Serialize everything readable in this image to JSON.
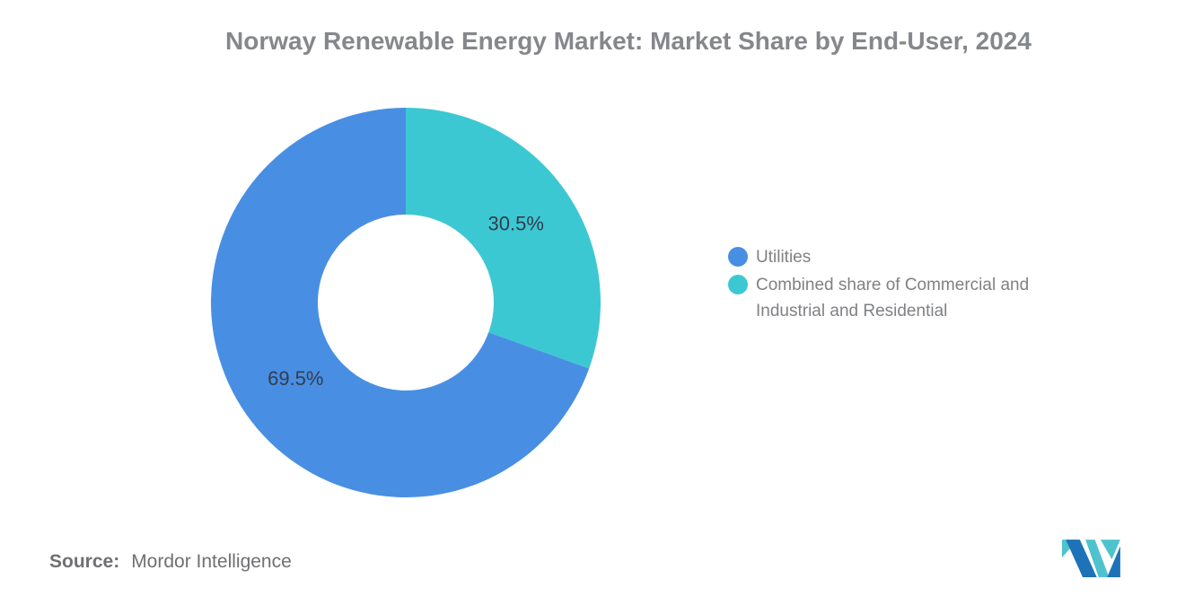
{
  "title": "Norway Renewable Energy Market: Market Share by End-User, 2024",
  "chart_data": {
    "type": "pie",
    "subtype": "donut",
    "start_angle_deg": 0,
    "direction": "clockwise",
    "inner_radius_ratio": 0.45,
    "slices": [
      {
        "name": "Combined share of Commercial and Industrial and Residential",
        "value": 30.5,
        "label": "30.5%",
        "color": "#3cc8d2"
      },
      {
        "name": "Utilities",
        "value": 69.5,
        "label": "69.5%",
        "color": "#488fe3"
      }
    ],
    "legend": [
      {
        "label": "Utilities",
        "slice": 1
      },
      {
        "label": "Combined share of Commercial and\nIndustrial and Residential",
        "slice": 0
      }
    ],
    "legend_position": "right",
    "slice_label_color": "#353c4e",
    "background": "#ffffff"
  },
  "source": {
    "prefix": "Source:",
    "text": "Mordor Intelligence"
  },
  "logo": {
    "name": "mordor-intelligence-logo",
    "teal": "#4ec3cd",
    "blue": "#1e73b8"
  }
}
